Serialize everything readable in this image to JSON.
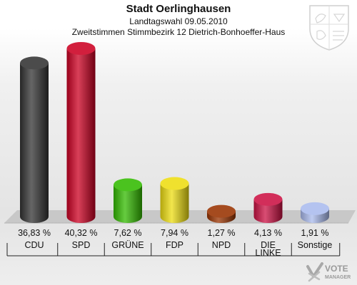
{
  "header": {
    "title": "Stadt Oerlinghausen",
    "subtitle": "Landtagswahl 09.05.2010",
    "district": "Zweitstimmen Stimmbezirk 12 Dietrich-Bonhoeffer-Haus"
  },
  "logo": {
    "brand": "VOTE",
    "sub": "MANAGER"
  },
  "chart_data": {
    "type": "bar",
    "title": "Stadt Oerlinghausen",
    "subtitle": "Landtagswahl 09.05.2010 – Zweitstimmen Stimmbezirk 12 Dietrich-Bonhoeffer-Haus",
    "unit": "%",
    "ylim": [
      0,
      40.32
    ],
    "categories": [
      "CDU",
      "SPD",
      "GRÜNE",
      "FDP",
      "NPD",
      "DIE LINKE",
      "Sonstige"
    ],
    "category_lines": [
      [
        "CDU"
      ],
      [
        "SPD"
      ],
      [
        "GRÜNE"
      ],
      [
        "FDP"
      ],
      [
        "NPD"
      ],
      [
        "DIE",
        "LINKE"
      ],
      [
        "Sonstige"
      ]
    ],
    "values": [
      36.83,
      40.32,
      7.62,
      7.94,
      1.27,
      4.13,
      1.91
    ],
    "value_labels": [
      "36,83 %",
      "40,32 %",
      "7,62 %",
      "7,94 %",
      "1,27 %",
      "4,13 %",
      "1,91 %"
    ],
    "colors": [
      "#333333",
      "#cc0022",
      "#33bb00",
      "#eedd11",
      "#993300",
      "#cc1144",
      "#aabbee"
    ],
    "grid": false,
    "legend": "none"
  }
}
